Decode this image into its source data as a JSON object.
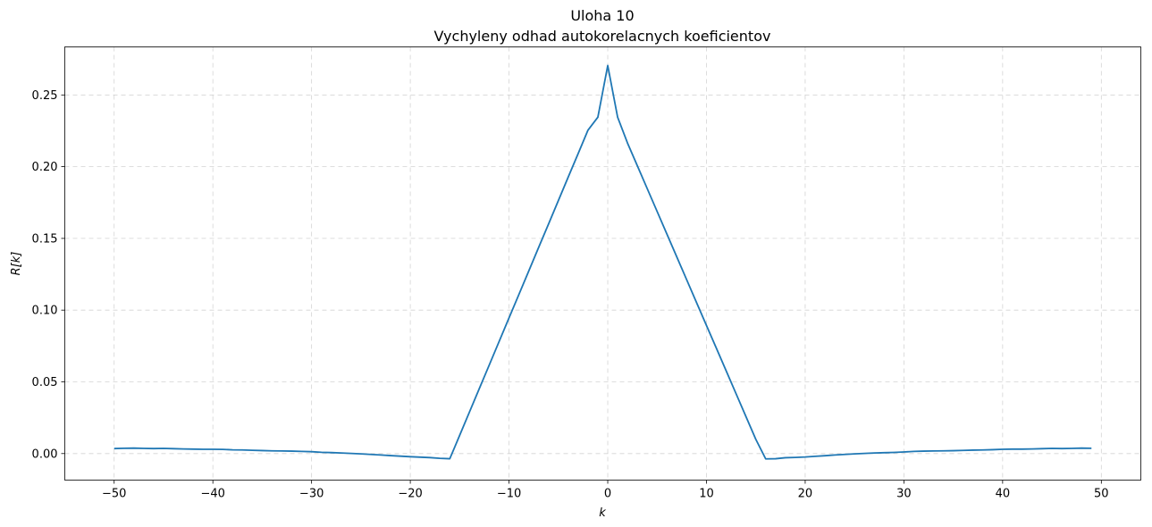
{
  "chart_data": {
    "type": "line",
    "title": "Uloha 10",
    "subtitle": "Vychyleny odhad autokorelacnych koeficientov",
    "xlabel": "k",
    "ylabel": "R[k]",
    "xlim": [
      -55,
      54
    ],
    "ylim": [
      -0.0185,
      0.2835
    ],
    "xticks": [
      -50,
      -40,
      -30,
      -20,
      -10,
      0,
      10,
      20,
      30,
      40,
      50
    ],
    "xtick_labels": [
      "−50",
      "−40",
      "−30",
      "−20",
      "−10",
      "0",
      "10",
      "20",
      "30",
      "40",
      "50"
    ],
    "yticks": [
      0.0,
      0.05,
      0.1,
      0.15,
      0.2,
      0.25
    ],
    "ytick_labels": [
      "0.00",
      "0.05",
      "0.10",
      "0.15",
      "0.20",
      "0.25"
    ],
    "grid": true,
    "color": "#1f77b4",
    "series": [
      {
        "x": [
          -50,
          -49,
          -48,
          -47,
          -46,
          -45,
          -44,
          -43,
          -42,
          -41,
          -40,
          -39,
          -38,
          -37,
          -36,
          -35,
          -34,
          -33,
          -32,
          -31,
          -30,
          -29,
          -28,
          -27,
          -26,
          -25,
          -24,
          -23,
          -22,
          -21,
          -20,
          -19,
          -18,
          -17,
          -16,
          -15,
          -14,
          -13,
          -12,
          -11,
          -10,
          -9,
          -8,
          -7,
          -6,
          -5,
          -4,
          -3,
          -2,
          -1,
          0,
          1,
          2,
          3,
          4,
          5,
          6,
          7,
          8,
          9,
          10,
          11,
          12,
          13,
          14,
          15,
          16,
          17,
          18,
          19,
          20,
          21,
          22,
          23,
          24,
          25,
          26,
          27,
          28,
          29,
          30,
          31,
          32,
          33,
          34,
          35,
          36,
          37,
          38,
          39,
          40,
          41,
          42,
          43,
          44,
          45,
          46,
          47,
          48,
          49
        ],
        "y": [
          0.0035,
          0.0037,
          0.0038,
          0.0036,
          0.0035,
          0.0036,
          0.0034,
          0.0032,
          0.0031,
          0.003,
          0.003,
          0.0029,
          0.0026,
          0.0025,
          0.0023,
          0.0021,
          0.0019,
          0.0018,
          0.0017,
          0.0015,
          0.0013,
          0.0009,
          0.0007,
          0.0004,
          0.0001,
          -0.0002,
          -0.0006,
          -0.001,
          -0.0014,
          -0.0018,
          -0.0022,
          -0.0025,
          -0.0028,
          -0.0033,
          -0.0036,
          0.0127,
          0.0291,
          0.0455,
          0.0618,
          0.0782,
          0.0946,
          0.1109,
          0.1273,
          0.1437,
          0.16,
          0.1764,
          0.1928,
          0.2091,
          0.2255,
          0.2345,
          0.2705,
          0.2345,
          0.2165,
          0.2006,
          0.1847,
          0.1688,
          0.1529,
          0.137,
          0.1211,
          0.1052,
          0.0893,
          0.0735,
          0.0576,
          0.0417,
          0.0258,
          0.0099,
          -0.0037,
          -0.0036,
          -0.0029,
          -0.0027,
          -0.0024,
          -0.0019,
          -0.0015,
          -0.001,
          -0.0006,
          -0.0002,
          0.0001,
          0.0004,
          0.0006,
          0.0008,
          0.0011,
          0.0015,
          0.0017,
          0.0018,
          0.0019,
          0.002,
          0.0022,
          0.0024,
          0.0025,
          0.0027,
          0.003,
          0.0031,
          0.0031,
          0.0032,
          0.0034,
          0.0036,
          0.0035,
          0.0036,
          0.0038,
          0.0037
        ]
      }
    ]
  }
}
